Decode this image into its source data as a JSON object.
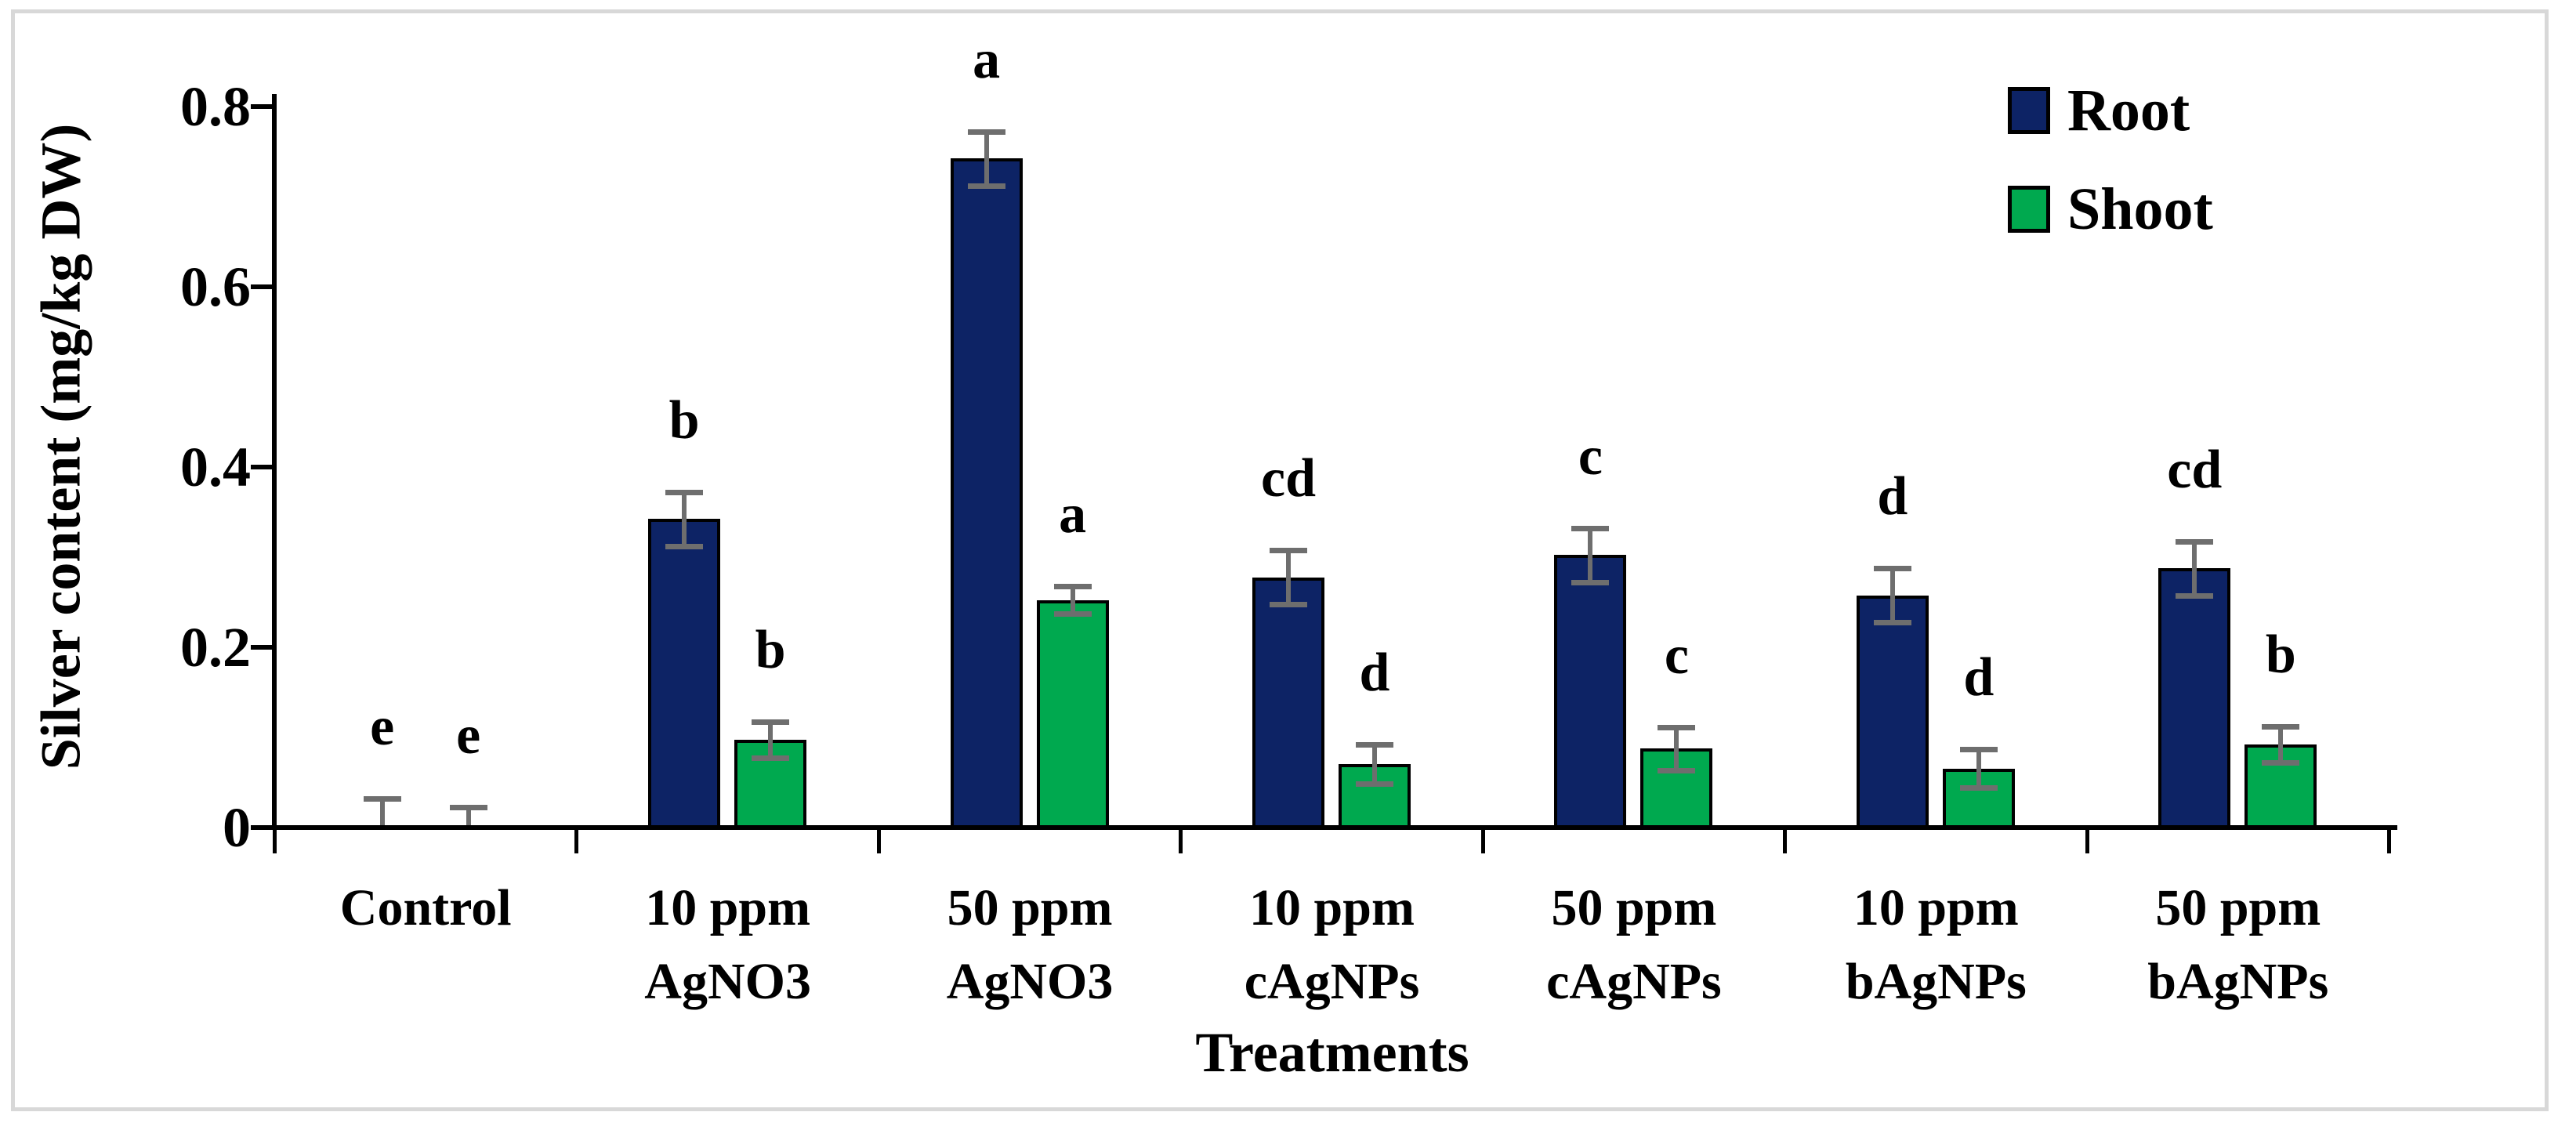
{
  "frame": {
    "border_color": "#d8d8d8",
    "background": "#ffffff"
  },
  "chart_data": {
    "type": "bar",
    "title": "",
    "xlabel": "Treatments",
    "ylabel": "Silver content (mg/kg DW)",
    "ylim": [
      0,
      0.8
    ],
    "ytick_values": [
      0,
      0.2,
      0.4,
      0.6,
      0.8
    ],
    "ytick_labels": [
      "0",
      "0.2",
      "0.4",
      "0.6",
      "0.8"
    ],
    "grid": false,
    "legend_position": "top-right",
    "categories": [
      "Control",
      "10 ppm AgNO3",
      "50 ppm AgNO3",
      "10 ppm cAgNPs",
      "50 ppm cAgNPs",
      "10 ppm bAgNPs",
      "50 ppm bAgNPs"
    ],
    "category_lines": [
      [
        "Control"
      ],
      [
        "10 ppm",
        "AgNO3"
      ],
      [
        "50 ppm",
        "AgNO3"
      ],
      [
        "10 ppm",
        "cAgNPs"
      ],
      [
        "50 ppm",
        "cAgNPs"
      ],
      [
        "10 ppm",
        "bAgNPs"
      ],
      [
        "50 ppm",
        "bAgNPs"
      ]
    ],
    "legend": {
      "entries": [
        {
          "label": "Root",
          "color": "#0d2365"
        },
        {
          "label": "Shoot",
          "color": "#00a94f"
        }
      ]
    },
    "series": [
      {
        "name": "Root",
        "color": "#0d2365",
        "values": [
          0,
          0.34,
          0.74,
          0.275,
          0.3,
          0.255,
          0.285
        ],
        "errors": [
          0.03,
          0.03,
          0.03,
          0.03,
          0.03,
          0.03,
          0.03
        ],
        "letters": [
          "e",
          "b",
          "a",
          "cd",
          "c",
          "d",
          "cd"
        ]
      },
      {
        "name": "Shoot",
        "color": "#00a94f",
        "values": [
          0,
          0.095,
          0.25,
          0.068,
          0.085,
          0.063,
          0.09
        ],
        "errors": [
          0.02,
          0.02,
          0.015,
          0.022,
          0.024,
          0.021,
          0.02
        ],
        "letters": [
          "e",
          "b",
          "a",
          "d",
          "c",
          "d",
          "b"
        ]
      }
    ],
    "error_bar_color": "#6e6e6e",
    "axis_color": "#000000"
  }
}
